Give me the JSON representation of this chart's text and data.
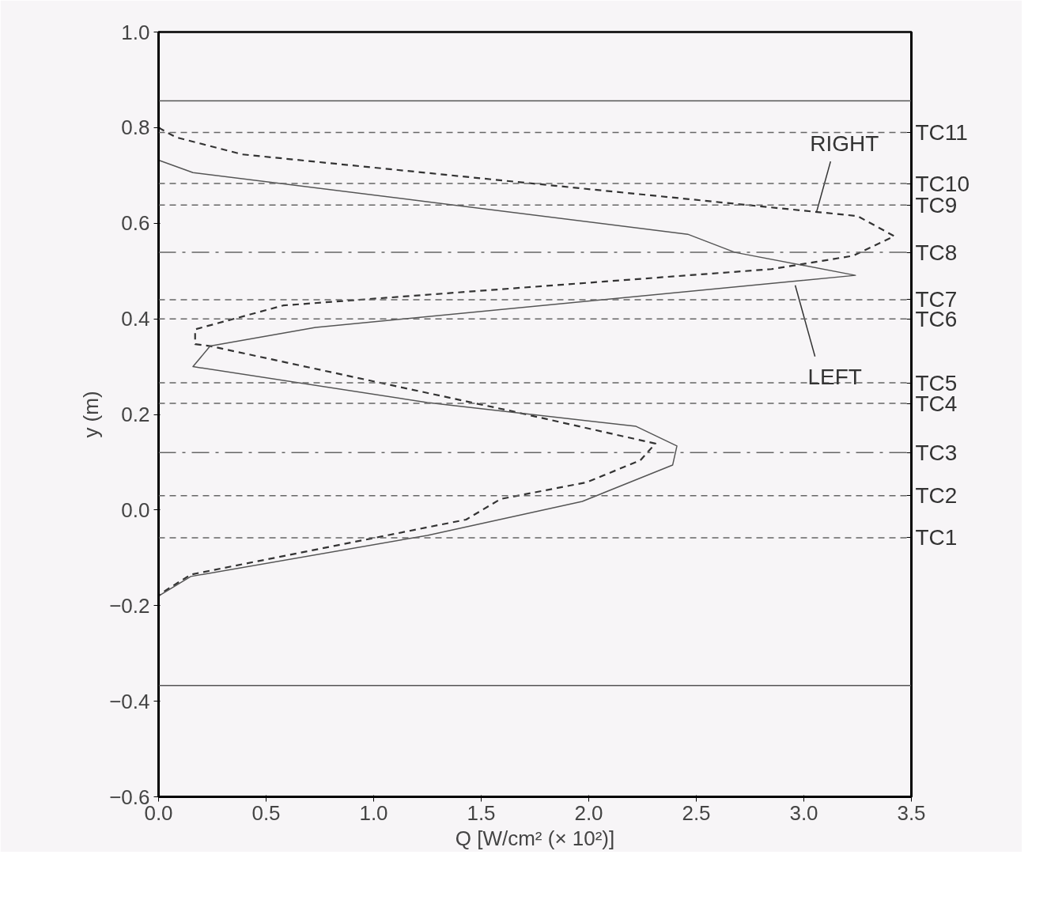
{
  "chart_data": {
    "type": "line",
    "xlabel": "Q [W/cm² (× 10²)]",
    "ylabel": "y (m)",
    "xlim": [
      0,
      3.5
    ],
    "ylim": [
      -0.6,
      1.0
    ],
    "xticks": [
      {
        "value": 0,
        "label": "0.0"
      },
      0.5,
      {
        "value": 1,
        "label": "1.0"
      },
      1.5,
      {
        "value": 2,
        "label": "2.0"
      },
      2.5,
      {
        "value": 3,
        "label": "3.0"
      },
      3.5
    ],
    "yticks": [
      {
        "value": -0.6,
        "label": "−0.6"
      },
      {
        "value": -0.4,
        "label": "−0.4"
      },
      {
        "value": -0.2,
        "label": "−0.2"
      },
      {
        "value": 0,
        "label": "0.0"
      },
      0.2,
      0.4,
      0.6,
      0.8,
      {
        "value": 1,
        "label": "1.0"
      }
    ],
    "grid": false,
    "series": [
      {
        "color": "#333333",
        "line_style": "dashed",
        "x": [
          0.0,
          0.08,
          0.39,
          3.25,
          3.42,
          3.23,
          2.85,
          0.58,
          0.17,
          0.17,
          0.24,
          1.63,
          2.31,
          2.24,
          1.99,
          1.59,
          1.43,
          0.15,
          0.02,
          0.0
        ],
        "values": [
          0.8,
          0.78,
          0.744,
          0.615,
          0.573,
          0.532,
          0.504,
          0.428,
          0.378,
          0.347,
          0.343,
          0.208,
          0.139,
          0.104,
          0.058,
          0.023,
          -0.02,
          -0.135,
          -0.172,
          -0.18
        ]
      },
      {
        "color": "#555555",
        "line_style": "solid",
        "x": [
          0.0,
          0.16,
          2.46,
          2.68,
          3.24,
          0.73,
          0.24,
          0.16,
          1.25,
          2.22,
          2.41,
          2.39,
          1.97,
          1.25,
          0.15,
          0.0
        ],
        "values": [
          0.732,
          0.706,
          0.577,
          0.539,
          0.491,
          0.382,
          0.343,
          0.3,
          0.225,
          0.175,
          0.134,
          0.094,
          0.018,
          -0.053,
          -0.139,
          -0.18
        ]
      }
    ],
    "ref_lines": [
      {
        "axis": "y",
        "value": 0.856,
        "line_style": "solid",
        "color": "#555555"
      },
      {
        "axis": "y",
        "value": 0.79,
        "label": "TC11",
        "line_style": "dashed",
        "color": "#666666"
      },
      {
        "axis": "y",
        "value": 0.683,
        "label": "TC10",
        "line_style": "dashed",
        "color": "#666666"
      },
      {
        "axis": "y",
        "value": 0.638,
        "label": "TC9",
        "line_style": "dashed",
        "color": "#666666"
      },
      {
        "axis": "y",
        "value": 0.539,
        "label": "TC8",
        "line_style": "dashdot",
        "color": "#666666"
      },
      {
        "axis": "y",
        "value": 0.44,
        "label": "TC7",
        "line_style": "dashed",
        "color": "#666666"
      },
      {
        "axis": "y",
        "value": 0.4,
        "label": "TC6",
        "line_style": "dashed",
        "color": "#666666"
      },
      {
        "axis": "y",
        "value": 0.266,
        "label": "TC5",
        "line_style": "dashed",
        "color": "#666666"
      },
      {
        "axis": "y",
        "value": 0.223,
        "label": "TC4",
        "line_style": "dashed",
        "color": "#666666"
      },
      {
        "axis": "y",
        "value": 0.12,
        "label": "TC3",
        "line_style": "dashdot",
        "color": "#666666"
      },
      {
        "axis": "y",
        "value": 0.03,
        "label": "TC2",
        "line_style": "dashed",
        "color": "#666666"
      },
      {
        "axis": "y",
        "value": -0.058,
        "label": "TC1",
        "line_style": "dashed",
        "color": "#666666"
      },
      {
        "axis": "y",
        "value": -0.367,
        "line_style": "solid",
        "color": "#555555"
      }
    ],
    "annotations": [
      {
        "text": "RIGHT",
        "x": 3.06,
        "y": 0.625
      },
      {
        "text": "LEFT",
        "x": 2.96,
        "y": 0.47
      }
    ]
  }
}
